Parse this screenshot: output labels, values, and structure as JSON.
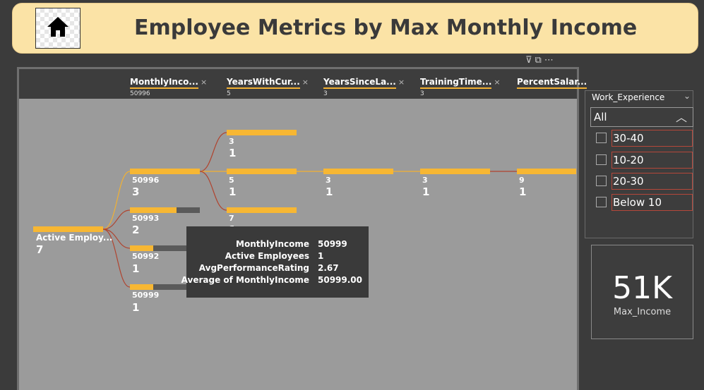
{
  "header": {
    "title": "Employee Metrics by Max Monthly Income",
    "home_icon": "home-icon"
  },
  "toolbar_icons": [
    "filter-icon",
    "focus-mode-icon",
    "more-options-icon"
  ],
  "levels": [
    {
      "name": "MonthlyInco...",
      "value": "50996"
    },
    {
      "name": "YearsWithCur...",
      "value": "5"
    },
    {
      "name": "YearsSinceLa...",
      "value": "3"
    },
    {
      "name": "TrainingTime...",
      "value": "3"
    },
    {
      "name": "PercentSalar...",
      "value": ""
    }
  ],
  "root": {
    "label": "Active Employ...",
    "count": "7"
  },
  "level1_nodes": [
    {
      "label": "50996",
      "count": "3",
      "fill": 1.0
    },
    {
      "label": "50993",
      "count": "2",
      "fill": 0.67
    },
    {
      "label": "50992",
      "count": "1",
      "fill": 0.33
    },
    {
      "label": "50999",
      "count": "1",
      "fill": 0.33
    }
  ],
  "level2_nodes": [
    {
      "label": "3",
      "count": "1"
    },
    {
      "label": "5",
      "count": "1"
    },
    {
      "label": "7",
      "count": "1"
    }
  ],
  "level3_node": {
    "label": "3",
    "count": "1"
  },
  "level4_node": {
    "label": "3",
    "count": "1"
  },
  "level5_node": {
    "label": "9",
    "count": "1"
  },
  "tooltip": [
    {
      "key": "MonthlyIncome",
      "value": "50999"
    },
    {
      "key": "Active Employees",
      "value": "1"
    },
    {
      "key": "AvgPerformanceRating",
      "value": "2.67"
    },
    {
      "key": "Average of MonthlyIncome",
      "value": "50999.00"
    }
  ],
  "slicer": {
    "title": "Work_Experience",
    "selected": "All",
    "options": [
      "30-40",
      "10-20",
      "20-30",
      "Below 10"
    ]
  },
  "card": {
    "value": "51K",
    "label": "Max_Income"
  }
}
